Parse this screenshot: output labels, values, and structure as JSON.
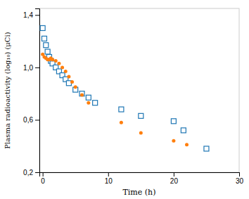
{
  "chart_data": {
    "type": "scatter",
    "xlabel": "Time (h)",
    "ylabel": "Plasma radioactivity (log₁₀) (μCi)",
    "xlim": [
      -0.5,
      30
    ],
    "ylim": [
      0.2,
      1.45
    ],
    "xticks": [
      0,
      10,
      20,
      30
    ],
    "yticks": [
      {
        "value": 0.2,
        "label": "0,2"
      },
      {
        "value": 0.6,
        "label": "0,6"
      },
      {
        "value": 1.0,
        "label": "1,0"
      },
      {
        "value": 1.4,
        "label": "1,4"
      }
    ],
    "series": [
      {
        "marker": "square",
        "x": [
          0.0,
          0.25,
          0.5,
          0.75,
          1.0,
          1.25,
          1.5,
          2.0,
          2.5,
          3.0,
          3.5,
          4.0,
          5.0,
          6.0,
          7.0,
          8.0,
          12.0,
          15.0,
          20.0,
          21.5,
          25.0
        ],
        "values": [
          1.3,
          1.22,
          1.17,
          1.12,
          1.08,
          1.05,
          1.03,
          1.0,
          0.97,
          0.94,
          0.91,
          0.88,
          0.83,
          0.8,
          0.77,
          0.73,
          0.68,
          0.63,
          0.59,
          0.52,
          0.38
        ]
      },
      {
        "marker": "dot",
        "x": [
          0.0,
          0.25,
          0.5,
          0.75,
          1.0,
          1.25,
          1.5,
          2.0,
          2.5,
          3.0,
          3.5,
          4.0,
          4.5,
          5.0,
          6.0,
          7.0,
          12.0,
          15.0,
          20.0,
          22.0
        ],
        "values": [
          1.1,
          1.08,
          1.07,
          1.06,
          1.06,
          1.07,
          1.06,
          1.05,
          1.03,
          1.0,
          0.97,
          0.93,
          0.89,
          0.85,
          0.79,
          0.73,
          0.58,
          0.5,
          0.44,
          0.41
        ]
      }
    ]
  }
}
